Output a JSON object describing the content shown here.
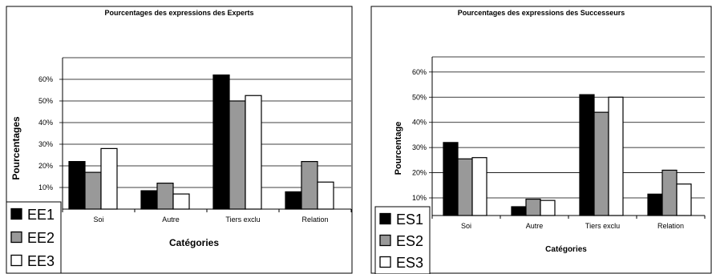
{
  "chart_data": [
    {
      "type": "bar",
      "title": "Pourcentages des expressions des Experts",
      "xlabel": "Catégories",
      "ylabel": "Pourcentages",
      "categories": [
        "Soi",
        "Autre",
        "Tiers exclu",
        "Relation"
      ],
      "y_tick_labels": [
        "10%",
        "20%",
        "30%",
        "40%",
        "50%",
        "60%"
      ],
      "ylim": [
        0,
        0.7
      ],
      "grid": true,
      "legend_position": "bottom-left",
      "series": [
        {
          "name": "EE1",
          "color": "#000000",
          "values": [
            0.22,
            0.085,
            0.62,
            0.08
          ]
        },
        {
          "name": "EE2",
          "color": "#999999",
          "values": [
            0.17,
            0.12,
            0.5,
            0.22
          ]
        },
        {
          "name": "EE3",
          "color": "#ffffff",
          "values": [
            0.28,
            0.07,
            0.525,
            0.125
          ]
        }
      ]
    },
    {
      "type": "bar",
      "title": "Pourcentages des expressions des Successeurs",
      "xlabel": "Catégories",
      "ylabel": "Pourcentage",
      "categories": [
        "Soi",
        "Autre",
        "Tiers exclu",
        "Relation"
      ],
      "y_tick_labels": [
        "10%",
        "20%",
        "30%",
        "40%",
        "50%",
        "60%"
      ],
      "ylim": [
        0.03,
        0.66
      ],
      "grid": true,
      "legend_position": "bottom-left",
      "series": [
        {
          "name": "ES1",
          "color": "#000000",
          "values": [
            0.32,
            0.065,
            0.51,
            0.115
          ]
        },
        {
          "name": "ES2",
          "color": "#999999",
          "values": [
            0.255,
            0.095,
            0.44,
            0.21
          ]
        },
        {
          "name": "ES3",
          "color": "#ffffff",
          "values": [
            0.26,
            0.09,
            0.5,
            0.155
          ]
        }
      ]
    }
  ]
}
